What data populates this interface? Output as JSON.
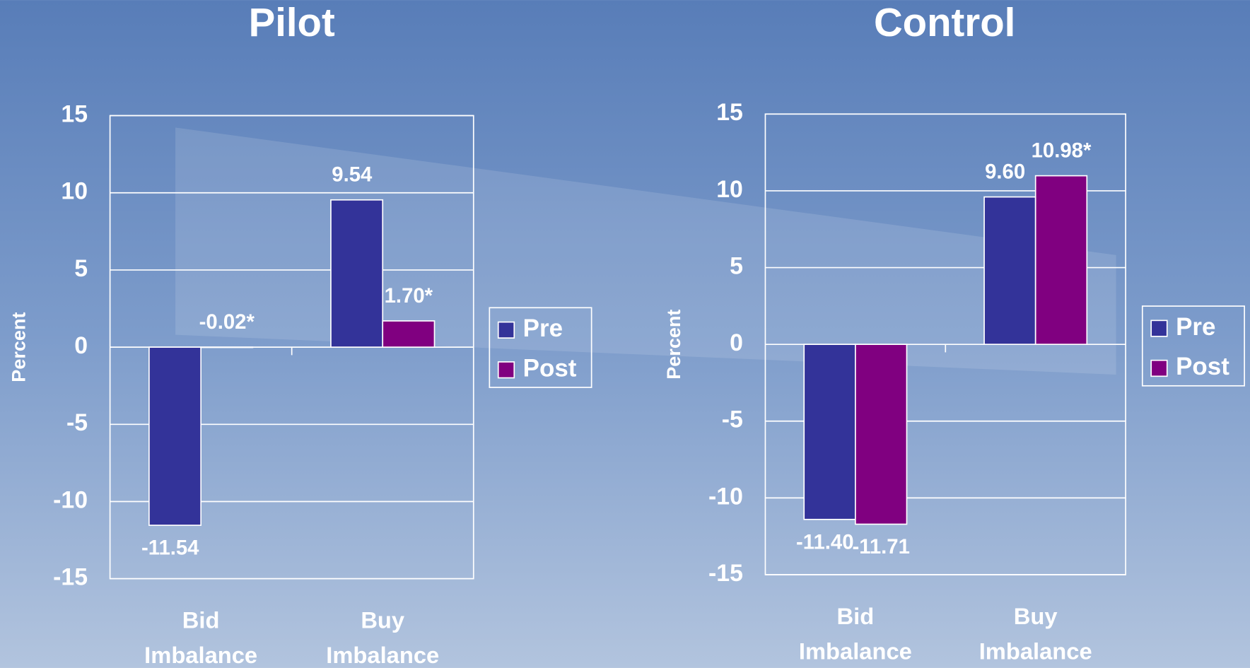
{
  "chart_data": [
    {
      "type": "bar",
      "title": "Pilot",
      "y_label": "Percent",
      "categories": [
        "Bid Imbalance",
        "Buy Imbalance"
      ],
      "series": [
        {
          "name": "Pre",
          "color": "#333399",
          "values": [
            -11.54,
            9.54
          ],
          "value_labels": [
            "-11.54",
            "9.54"
          ]
        },
        {
          "name": "Post",
          "color": "#800080",
          "values": [
            -0.02,
            1.7
          ],
          "value_labels": [
            "-0.02*",
            "1.70*"
          ]
        }
      ],
      "ylim": [
        -15,
        15
      ],
      "yticks": [
        -15,
        -10,
        -5,
        0,
        5,
        10,
        15
      ],
      "grid": true,
      "legend": "right"
    },
    {
      "type": "bar",
      "title": "Control",
      "y_label": "Percent",
      "categories": [
        "Bid Imbalance",
        "Buy Imbalance"
      ],
      "series": [
        {
          "name": "Pre",
          "color": "#333399",
          "values": [
            -11.4,
            9.6
          ],
          "value_labels": [
            "-11.40",
            "9.60"
          ]
        },
        {
          "name": "Post",
          "color": "#800080",
          "values": [
            -11.71,
            10.98
          ],
          "value_labels": [
            "-11.71",
            "10.98*"
          ]
        }
      ],
      "ylim": [
        -15,
        15
      ],
      "yticks": [
        -15,
        -10,
        -5,
        0,
        5,
        10,
        15
      ],
      "grid": true,
      "legend": "right"
    }
  ]
}
